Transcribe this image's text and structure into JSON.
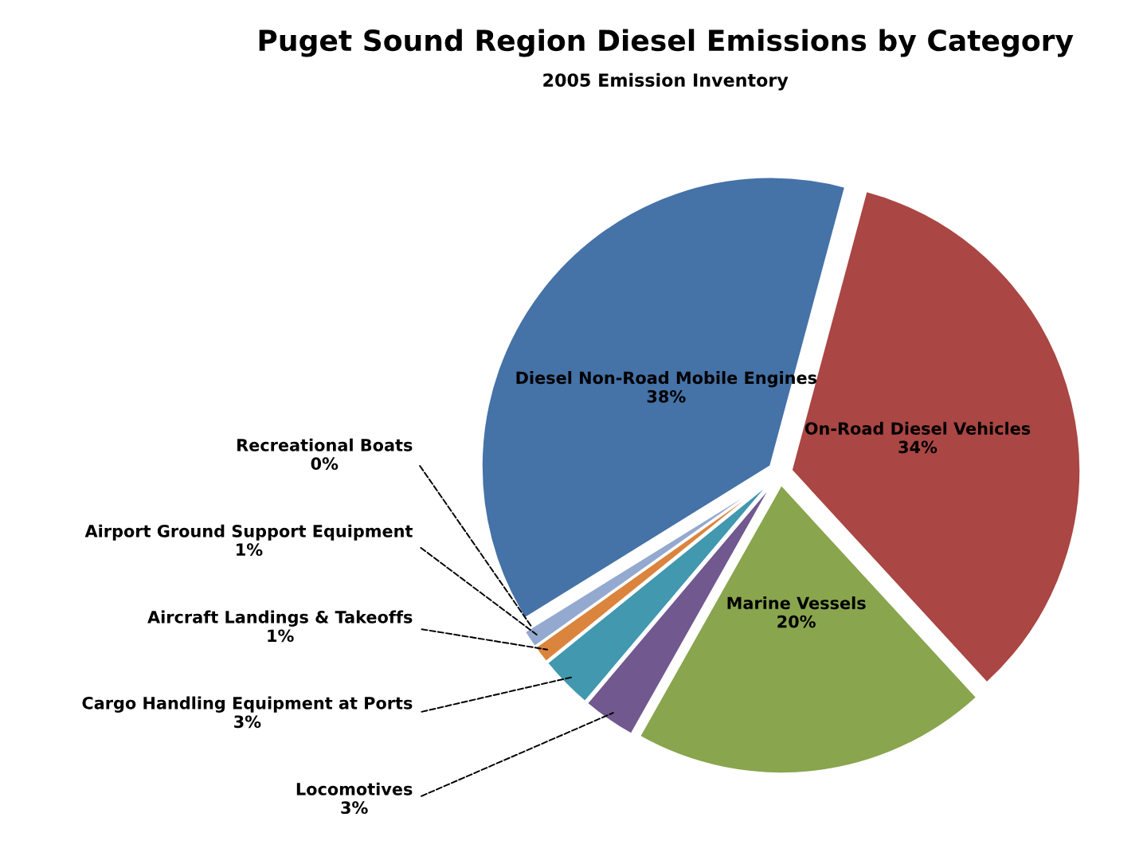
{
  "chart_data": {
    "type": "pie",
    "title": "Puget Sound Region Diesel Emissions by Category",
    "subtitle": "2005 Emission Inventory",
    "categories": [
      "On-Road Diesel Vehicles",
      "Marine Vessels",
      "Locomotives",
      "Cargo Handling Equipment at Ports",
      "Aircraft Landings & Takeoffs",
      "Airport Ground Support Equipment",
      "Recreational Boats",
      "Diesel Non-Road Mobile Engines"
    ],
    "values": [
      34,
      20,
      3,
      3,
      1,
      1,
      0,
      38
    ],
    "value_labels": [
      "34%",
      "20%",
      "3%",
      "3%",
      "1%",
      "1%",
      "0%",
      "38%"
    ],
    "colors": [
      "#aa4643",
      "#89a54e",
      "#71588f",
      "#4198af",
      "#db843d",
      "#93a9cf",
      "#d19392",
      "#4572a7"
    ],
    "legend": false
  }
}
